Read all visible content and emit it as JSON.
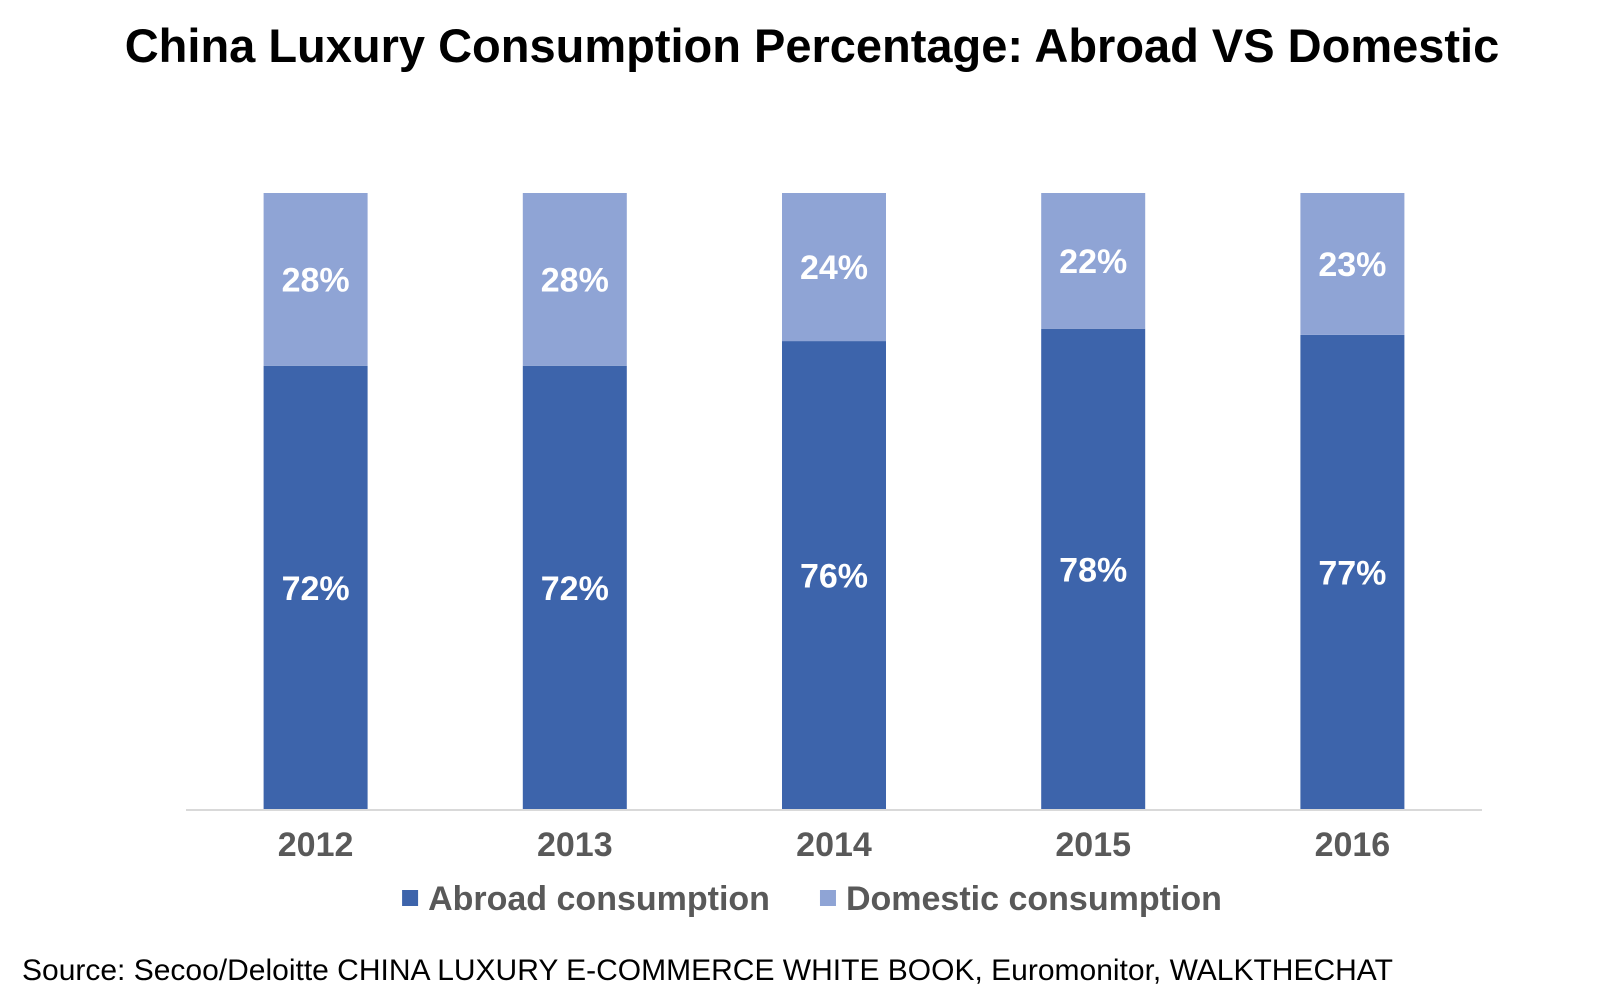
{
  "title": "China Luxury Consumption Percentage: Abroad VS Domestic",
  "source": "Source: Secoo/Deloitte CHINA LUXURY E-COMMERCE WHITE BOOK, Euromonitor,  WALKTHECHAT",
  "colors": {
    "abroad": "#3D64AB",
    "domestic": "#8FA4D5",
    "axis": "#D9D9D9",
    "tick_text": "#595959"
  },
  "chart_data": {
    "type": "bar",
    "stacked": true,
    "percent_stacked": true,
    "categories": [
      "2012",
      "2013",
      "2014",
      "2015",
      "2016"
    ],
    "series": [
      {
        "name": "Abroad consumption",
        "values": [
          72,
          72,
          76,
          78,
          77
        ],
        "labels": [
          "72%",
          "72%",
          "76%",
          "78%",
          "77%"
        ]
      },
      {
        "name": "Domestic consumption",
        "values": [
          28,
          28,
          24,
          22,
          23
        ],
        "labels": [
          "28%",
          "28%",
          "24%",
          "22%",
          "23%"
        ]
      }
    ],
    "ylim": [
      0,
      100
    ],
    "grid": false,
    "legend_position": "bottom",
    "title": "China Luxury Consumption Percentage: Abroad VS Domestic",
    "xlabel": "",
    "ylabel": ""
  }
}
